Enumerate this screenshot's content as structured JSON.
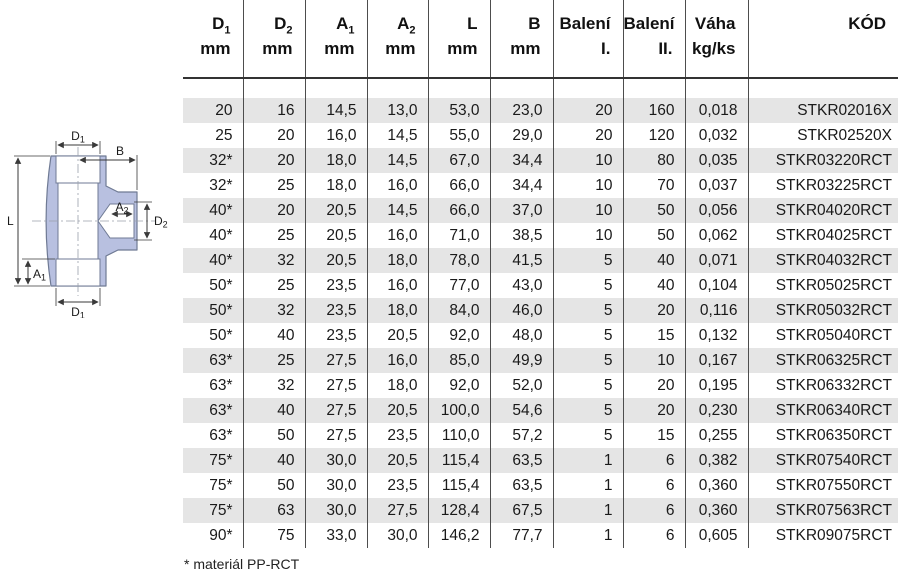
{
  "table": {
    "columns": [
      {
        "t": "D",
        "s": "1",
        "u": "mm"
      },
      {
        "t": "D",
        "s": "2",
        "u": "mm"
      },
      {
        "t": "A",
        "s": "1",
        "u": "mm"
      },
      {
        "t": "A",
        "s": "2",
        "u": "mm"
      },
      {
        "t": "L",
        "s": "",
        "u": "mm"
      },
      {
        "t": "B",
        "s": "",
        "u": "mm"
      },
      {
        "t": "Balení",
        "s": "",
        "u": "I."
      },
      {
        "t": "Balení",
        "s": "",
        "u": "II."
      },
      {
        "t": "Váha",
        "s": "",
        "u": "kg/ks"
      },
      {
        "t": "KÓD",
        "s": "",
        "u": ""
      }
    ],
    "rows": [
      [
        "20",
        "16",
        "14,5",
        "13,0",
        "53,0",
        "23,0",
        "20",
        "160",
        "0,018",
        "STKR02016X"
      ],
      [
        "25",
        "20",
        "16,0",
        "14,5",
        "55,0",
        "29,0",
        "20",
        "120",
        "0,032",
        "STKR02520X"
      ],
      [
        "32*",
        "20",
        "18,0",
        "14,5",
        "67,0",
        "34,4",
        "10",
        "80",
        "0,035",
        "STKR03220RCT"
      ],
      [
        "32*",
        "25",
        "18,0",
        "16,0",
        "66,0",
        "34,4",
        "10",
        "70",
        "0,037",
        "STKR03225RCT"
      ],
      [
        "40*",
        "20",
        "20,5",
        "14,5",
        "66,0",
        "37,0",
        "10",
        "50",
        "0,056",
        "STKR04020RCT"
      ],
      [
        "40*",
        "25",
        "20,5",
        "16,0",
        "71,0",
        "38,5",
        "10",
        "50",
        "0,062",
        "STKR04025RCT"
      ],
      [
        "40*",
        "32",
        "20,5",
        "18,0",
        "78,0",
        "41,5",
        "5",
        "40",
        "0,071",
        "STKR04032RCT"
      ],
      [
        "50*",
        "25",
        "23,5",
        "16,0",
        "77,0",
        "43,0",
        "5",
        "40",
        "0,104",
        "STKR05025RCT"
      ],
      [
        "50*",
        "32",
        "23,5",
        "18,0",
        "84,0",
        "46,0",
        "5",
        "20",
        "0,116",
        "STKR05032RCT"
      ],
      [
        "50*",
        "40",
        "23,5",
        "20,5",
        "92,0",
        "48,0",
        "5",
        "15",
        "0,132",
        "STKR05040RCT"
      ],
      [
        "63*",
        "25",
        "27,5",
        "16,0",
        "85,0",
        "49,9",
        "5",
        "10",
        "0,167",
        "STKR06325RCT"
      ],
      [
        "63*",
        "32",
        "27,5",
        "18,0",
        "92,0",
        "52,0",
        "5",
        "20",
        "0,195",
        "STKR06332RCT"
      ],
      [
        "63*",
        "40",
        "27,5",
        "20,5",
        "100,0",
        "54,6",
        "5",
        "20",
        "0,230",
        "STKR06340RCT"
      ],
      [
        "63*",
        "50",
        "27,5",
        "23,5",
        "110,0",
        "57,2",
        "5",
        "15",
        "0,255",
        "STKR06350RCT"
      ],
      [
        "75*",
        "40",
        "30,0",
        "20,5",
        "115,4",
        "63,5",
        "1",
        "6",
        "0,382",
        "STKR07540RCT"
      ],
      [
        "75*",
        "50",
        "30,0",
        "23,5",
        "115,4",
        "63,5",
        "1",
        "6",
        "0,360",
        "STKR07550RCT"
      ],
      [
        "75*",
        "63",
        "30,0",
        "27,5",
        "128,4",
        "67,5",
        "1",
        "6",
        "0,360",
        "STKR07563RCT"
      ],
      [
        "90*",
        "75",
        "33,0",
        "30,0",
        "146,2",
        "77,7",
        "1",
        "6",
        "0,605",
        "STKR09075RCT"
      ]
    ]
  },
  "diagram": {
    "d1_top": {
      "t": "D",
      "s": "1"
    },
    "b": {
      "t": "B",
      "s": ""
    },
    "l": {
      "t": "L",
      "s": ""
    },
    "a1": {
      "t": "A",
      "s": "1"
    },
    "a2": {
      "t": "A",
      "s": "2"
    },
    "d2": {
      "t": "D",
      "s": "2"
    },
    "d1_bottom": {
      "t": "D",
      "s": "1"
    }
  },
  "footnote": "* materiál PP-RCT",
  "colors": {
    "row_stripe": "#e5e5e5",
    "table_line": "#4d4d4d",
    "diagram_fill": "#b8c0e0",
    "diagram_stroke": "#6f7a94"
  }
}
